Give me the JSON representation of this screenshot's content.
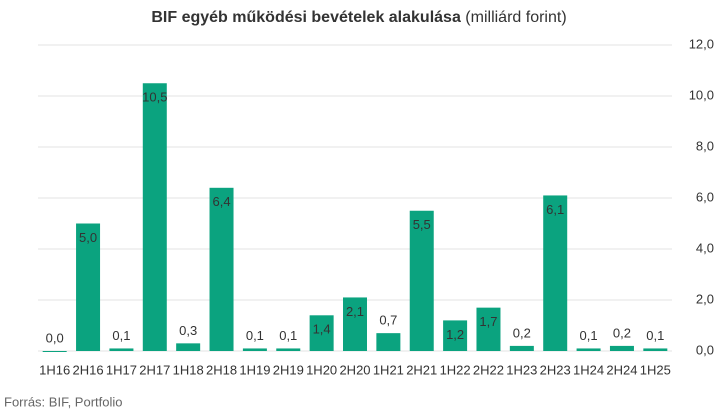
{
  "chart_data": {
    "type": "bar",
    "title": "BIF egyéb működési bevételek alakulása",
    "subtitle": "(milliárd forint)",
    "source": "Forrás: BIF, Portfolio",
    "categories": [
      "1H16",
      "2H16",
      "1H17",
      "2H17",
      "1H18",
      "2H18",
      "1H19",
      "2H19",
      "1H20",
      "2H20",
      "1H21",
      "2H21",
      "1H22",
      "2H22",
      "1H23",
      "2H23",
      "1H24",
      "2H24",
      "1H25"
    ],
    "values": [
      0.0,
      5.0,
      0.1,
      10.5,
      0.3,
      6.4,
      0.1,
      0.1,
      1.4,
      2.1,
      0.7,
      5.5,
      1.2,
      1.7,
      0.2,
      6.1,
      0.1,
      0.2,
      0.1
    ],
    "value_labels": [
      "0,0",
      "5,0",
      "0,1",
      "10,5",
      "0,3",
      "6,4",
      "0,1",
      "0,1",
      "1,4",
      "2,1",
      "0,7",
      "5,5",
      "1,2",
      "1,7",
      "0,2",
      "6,1",
      "0,1",
      "0,2",
      "0,1"
    ],
    "color": "#0ba37f",
    "ylim": [
      0,
      12
    ],
    "yticks": [
      {
        "value": 0,
        "label": "0,0"
      },
      {
        "value": 2,
        "label": "2,0"
      },
      {
        "value": 4,
        "label": "4,0"
      },
      {
        "value": 6,
        "label": "6,0"
      },
      {
        "value": 8,
        "label": "8,0"
      },
      {
        "value": 10,
        "label": "10,0"
      },
      {
        "value": 12,
        "label": "12,0"
      }
    ],
    "grid": true
  }
}
